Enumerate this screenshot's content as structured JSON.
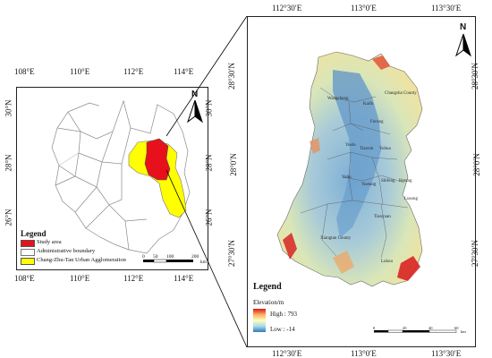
{
  "left_map": {
    "top_ticks": [
      "108°E",
      "110°E",
      "112°E",
      "114°E"
    ],
    "bottom_ticks": [
      "108°E",
      "110°E",
      "112°E",
      "114°E"
    ],
    "left_ticks": [
      "30°N",
      "28°N",
      "26°N"
    ],
    "right_ticks": [
      "30°N",
      "28°N",
      "26°N"
    ],
    "north_label": "N",
    "legend": {
      "title": "Legend",
      "items": [
        {
          "label": "Study area",
          "color": "#e8101b"
        },
        {
          "label": "Administrative boundary",
          "color": "#ffffff"
        },
        {
          "label": "Chang-Zhu-Tan Urban Agglomeration",
          "color": "#ffff00"
        }
      ]
    },
    "scale": {
      "ticks": [
        "0",
        "50",
        "100",
        "200"
      ],
      "unit": "km"
    }
  },
  "right_map": {
    "top_ticks": [
      "112°30′E",
      "113°0′E",
      "113°30′E"
    ],
    "bottom_ticks": [
      "112°30′E",
      "113°0′E",
      "113°30′E"
    ],
    "left_ticks": [
      "28°30′N",
      "28°0′N",
      "27°30′N"
    ],
    "right_ticks": [
      "28°30′N",
      "28°0′N",
      "27°30′N"
    ],
    "north_label": "N",
    "places": [
      "Wangcheng",
      "Changsha County",
      "Kaifu",
      "Furong",
      "Yuelu",
      "Tianxin",
      "Yuhua",
      "Yuhu",
      "Yuetang",
      "Shifeng",
      "Hetang",
      "Lusong",
      "Tianyuan",
      "Xiangtan County",
      "Lukou"
    ],
    "legend": {
      "title": "Legend",
      "elevation_title": "Elevation/m",
      "high_label": "High : 793",
      "low_label": "Low : -14",
      "colors": {
        "high": "#d7191c",
        "mid": "#ffffbf",
        "low": "#2c7bb6"
      }
    },
    "scale": {
      "ticks": [
        "0",
        "20",
        "40",
        "60"
      ],
      "unit": "km"
    }
  }
}
